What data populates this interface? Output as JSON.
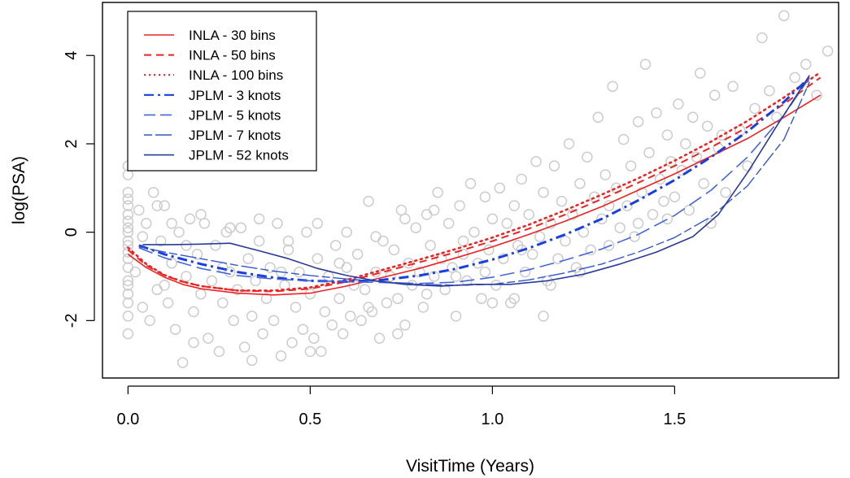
{
  "chart_data": {
    "type": "scatter",
    "xlabel": "VisitTime (Years)",
    "ylabel": "log(PSA)",
    "xlim": [
      -0.07,
      1.95
    ],
    "ylim": [
      -3.3,
      5.2
    ],
    "xticks": [
      0.0,
      0.5,
      1.0,
      1.5
    ],
    "xtick_labels": [
      "0.0",
      "0.5",
      "1.0",
      "1.5"
    ],
    "yticks": [
      -2,
      0,
      2,
      4
    ],
    "ytick_labels": [
      "-2",
      "0",
      "2",
      "4"
    ],
    "grid": false,
    "legend_position": "top-left",
    "point_color": "#cccccc",
    "point_style": "open-circle",
    "scatter_points": [
      [
        0.0,
        -0.3
      ],
      [
        0.0,
        0.4
      ],
      [
        0.0,
        -0.8
      ],
      [
        0.0,
        0.9
      ],
      [
        0.0,
        -1.4
      ],
      [
        0.0,
        1.3
      ],
      [
        0.0,
        -1.9
      ],
      [
        0.0,
        0.1
      ],
      [
        0.0,
        -0.6
      ],
      [
        0.0,
        0.6
      ],
      [
        0.0,
        -1.1
      ],
      [
        0.0,
        -2.3
      ],
      [
        0.0,
        1.5
      ],
      [
        0.0,
        0.0
      ],
      [
        0.0,
        -0.2
      ],
      [
        0.0,
        0.25
      ],
      [
        0.0,
        -0.45
      ],
      [
        0.0,
        -1.6
      ],
      [
        0.0,
        0.75
      ],
      [
        0.0,
        -1.2
      ],
      [
        0.02,
        -0.9
      ],
      [
        0.03,
        0.5
      ],
      [
        0.04,
        -1.7
      ],
      [
        0.05,
        0.2
      ],
      [
        0.06,
        -2.0
      ],
      [
        0.07,
        0.9
      ],
      [
        0.08,
        -1.3
      ],
      [
        0.09,
        -0.2
      ],
      [
        0.1,
        0.6
      ],
      [
        0.11,
        -1.6
      ],
      [
        0.12,
        -0.7
      ],
      [
        0.13,
        -2.2
      ],
      [
        0.14,
        0.0
      ],
      [
        0.15,
        -2.95
      ],
      [
        0.16,
        -1.0
      ],
      [
        0.17,
        0.3
      ],
      [
        0.18,
        -1.8
      ],
      [
        0.19,
        -0.5
      ],
      [
        0.2,
        -1.4
      ],
      [
        0.21,
        0.2
      ],
      [
        0.22,
        -2.4
      ],
      [
        0.23,
        -1.1
      ],
      [
        0.24,
        -0.3
      ],
      [
        0.25,
        -2.7
      ],
      [
        0.26,
        -1.6
      ],
      [
        0.27,
        0.0
      ],
      [
        0.28,
        -0.9
      ],
      [
        0.29,
        -2.0
      ],
      [
        0.3,
        -1.3
      ],
      [
        0.31,
        0.1
      ],
      [
        0.32,
        -2.6
      ],
      [
        0.33,
        -0.6
      ],
      [
        0.34,
        -1.9
      ],
      [
        0.35,
        -1.1
      ],
      [
        0.36,
        -0.2
      ],
      [
        0.37,
        -2.3
      ],
      [
        0.38,
        -1.5
      ],
      [
        0.39,
        -0.8
      ],
      [
        0.4,
        -2.0
      ],
      [
        0.41,
        0.2
      ],
      [
        0.42,
        -2.8
      ],
      [
        0.43,
        -1.2
      ],
      [
        0.44,
        -0.4
      ],
      [
        0.45,
        -2.5
      ],
      [
        0.46,
        -1.7
      ],
      [
        0.47,
        -0.9
      ],
      [
        0.48,
        -2.2
      ],
      [
        0.49,
        0.0
      ],
      [
        0.5,
        -1.4
      ],
      [
        0.51,
        -2.4
      ],
      [
        0.52,
        -0.6
      ],
      [
        0.53,
        -2.7
      ],
      [
        0.54,
        -1.8
      ],
      [
        0.55,
        -1.0
      ],
      [
        0.56,
        -2.1
      ],
      [
        0.57,
        -0.3
      ],
      [
        0.58,
        -1.5
      ],
      [
        0.59,
        -2.3
      ],
      [
        0.6,
        -0.8
      ],
      [
        0.61,
        -1.9
      ],
      [
        0.62,
        -1.2
      ],
      [
        0.63,
        -0.5
      ],
      [
        0.64,
        -2.0
      ],
      [
        0.65,
        -1.3
      ],
      [
        0.66,
        0.7
      ],
      [
        0.67,
        -1.8
      ],
      [
        0.68,
        -0.9
      ],
      [
        0.69,
        -2.4
      ],
      [
        0.7,
        -0.2
      ],
      [
        0.71,
        -1.6
      ],
      [
        0.72,
        -1.0
      ],
      [
        0.73,
        -0.4
      ],
      [
        0.74,
        -1.5
      ],
      [
        0.75,
        0.5
      ],
      [
        0.76,
        -2.1
      ],
      [
        0.77,
        -0.7
      ],
      [
        0.78,
        -1.2
      ],
      [
        0.79,
        0.1
      ],
      [
        0.8,
        -0.9
      ],
      [
        0.81,
        -1.7
      ],
      [
        0.82,
        0.4
      ],
      [
        0.83,
        -0.3
      ],
      [
        0.84,
        -1.0
      ],
      [
        0.85,
        0.9
      ],
      [
        0.86,
        -0.6
      ],
      [
        0.87,
        -1.3
      ],
      [
        0.88,
        0.2
      ],
      [
        0.89,
        -0.8
      ],
      [
        0.9,
        -1.9
      ],
      [
        0.91,
        0.6
      ],
      [
        0.92,
        -0.2
      ],
      [
        0.93,
        -1.1
      ],
      [
        0.94,
        1.1
      ],
      [
        0.95,
        0.0
      ],
      [
        0.96,
        -0.7
      ],
      [
        0.97,
        -1.5
      ],
      [
        0.98,
        0.8
      ],
      [
        0.99,
        -0.4
      ],
      [
        1.0,
        0.3
      ],
      [
        1.01,
        -1.2
      ],
      [
        1.02,
        1.0
      ],
      [
        1.03,
        -0.6
      ],
      [
        1.04,
        0.2
      ],
      [
        1.05,
        -1.6
      ],
      [
        1.06,
        0.6
      ],
      [
        1.07,
        -0.3
      ],
      [
        1.08,
        1.2
      ],
      [
        1.09,
        -0.9
      ],
      [
        1.1,
        0.4
      ],
      [
        1.11,
        -0.5
      ],
      [
        1.12,
        1.6
      ],
      [
        1.13,
        -0.1
      ],
      [
        1.14,
        0.9
      ],
      [
        1.15,
        -1.1
      ],
      [
        1.16,
        0.2
      ],
      [
        1.17,
        1.5
      ],
      [
        1.18,
        -0.6
      ],
      [
        1.19,
        0.7
      ],
      [
        1.2,
        -0.2
      ],
      [
        1.21,
        2.0
      ],
      [
        1.22,
        0.4
      ],
      [
        1.23,
        -0.8
      ],
      [
        1.24,
        1.1
      ],
      [
        1.25,
        0.0
      ],
      [
        1.26,
        1.7
      ],
      [
        1.27,
        -0.4
      ],
      [
        1.28,
        0.8
      ],
      [
        1.29,
        2.6
      ],
      [
        1.3,
        0.3
      ],
      [
        1.31,
        1.3
      ],
      [
        1.32,
        -0.3
      ],
      [
        1.33,
        3.3
      ],
      [
        1.34,
        1.0
      ],
      [
        1.35,
        0.1
      ],
      [
        1.36,
        2.1
      ],
      [
        1.37,
        0.6
      ],
      [
        1.38,
        1.5
      ],
      [
        1.39,
        -0.1
      ],
      [
        1.4,
        2.5
      ],
      [
        1.41,
        0.9
      ],
      [
        1.42,
        3.8
      ],
      [
        1.43,
        1.8
      ],
      [
        1.44,
        0.4
      ],
      [
        1.45,
        2.7
      ],
      [
        1.46,
        1.2
      ],
      [
        1.47,
        0.7
      ],
      [
        1.48,
        2.2
      ],
      [
        1.49,
        1.6
      ],
      [
        1.5,
        0.8
      ],
      [
        1.51,
        2.9
      ],
      [
        1.52,
        1.4
      ],
      [
        1.53,
        2.0
      ],
      [
        1.54,
        0.5
      ],
      [
        1.55,
        2.6
      ],
      [
        1.56,
        1.7
      ],
      [
        1.57,
        3.6
      ],
      [
        1.58,
        1.1
      ],
      [
        1.59,
        2.4
      ],
      [
        1.6,
        0.2
      ],
      [
        1.61,
        3.1
      ],
      [
        1.62,
        1.9
      ],
      [
        1.63,
        2.2
      ],
      [
        1.64,
        0.9
      ],
      [
        1.66,
        3.3
      ],
      [
        1.68,
        2.3
      ],
      [
        1.7,
        1.5
      ],
      [
        1.72,
        2.8
      ],
      [
        1.74,
        4.4
      ],
      [
        1.76,
        3.2
      ],
      [
        1.78,
        2.6
      ],
      [
        1.8,
        4.9
      ],
      [
        1.83,
        3.5
      ],
      [
        1.86,
        3.8
      ],
      [
        1.89,
        3.1
      ],
      [
        1.92,
        4.1
      ],
      [
        0.04,
        -0.1
      ],
      [
        0.08,
        0.6
      ],
      [
        0.12,
        0.2
      ],
      [
        0.16,
        -0.3
      ],
      [
        0.2,
        0.4
      ],
      [
        0.28,
        0.1
      ],
      [
        0.36,
        0.3
      ],
      [
        0.44,
        -0.2
      ],
      [
        0.52,
        0.2
      ],
      [
        0.6,
        0.0
      ],
      [
        0.68,
        -0.1
      ],
      [
        0.76,
        0.3
      ],
      [
        0.84,
        0.5
      ],
      [
        0.92,
        -0.5
      ],
      [
        1.0,
        -1.6
      ],
      [
        1.08,
        -0.4
      ],
      [
        1.16,
        -1.2
      ],
      [
        1.24,
        -0.9
      ],
      [
        1.32,
        0.6
      ],
      [
        1.4,
        0.2
      ],
      [
        1.48,
        0.3
      ],
      [
        0.1,
        -1.2
      ],
      [
        0.18,
        -2.5
      ],
      [
        0.26,
        -0.8
      ],
      [
        0.34,
        -2.9
      ],
      [
        0.42,
        -0.9
      ],
      [
        0.5,
        -2.7
      ],
      [
        0.58,
        -0.7
      ],
      [
        0.66,
        -1.7
      ],
      [
        0.74,
        -2.3
      ],
      [
        0.82,
        -1.4
      ],
      [
        0.9,
        -1.0
      ],
      [
        0.98,
        -0.9
      ],
      [
        1.06,
        -1.5
      ],
      [
        1.14,
        -1.9
      ]
    ],
    "series": [
      {
        "name": "INLA - 30 bins",
        "color": "#ee2222",
        "dash": "solid",
        "width": 1.6,
        "x": [
          0.0,
          0.05,
          0.1,
          0.15,
          0.2,
          0.3,
          0.4,
          0.5,
          0.6,
          0.7,
          0.8,
          0.9,
          1.0,
          1.1,
          1.2,
          1.3,
          1.4,
          1.5,
          1.6,
          1.7,
          1.8,
          1.9
        ],
        "y": [
          -0.5,
          -0.8,
          -1.02,
          -1.18,
          -1.28,
          -1.38,
          -1.42,
          -1.38,
          -1.22,
          -1.02,
          -0.82,
          -0.58,
          -0.33,
          -0.05,
          0.25,
          0.58,
          0.95,
          1.32,
          1.72,
          2.12,
          2.6,
          3.1
        ]
      },
      {
        "name": "INLA - 50 bins",
        "color": "#ee2222",
        "dash": "dashed",
        "width": 2.0,
        "x": [
          0.0,
          0.05,
          0.1,
          0.15,
          0.2,
          0.3,
          0.4,
          0.5,
          0.6,
          0.7,
          0.8,
          0.9,
          1.0,
          1.1,
          1.2,
          1.3,
          1.4,
          1.5,
          1.6,
          1.7,
          1.8,
          1.9
        ],
        "y": [
          -0.4,
          -0.75,
          -0.98,
          -1.12,
          -1.22,
          -1.32,
          -1.34,
          -1.28,
          -1.12,
          -0.9,
          -0.68,
          -0.45,
          -0.2,
          0.08,
          0.4,
          0.75,
          1.12,
          1.5,
          1.92,
          2.38,
          2.9,
          3.5
        ]
      },
      {
        "name": "INLA - 100 bins",
        "color": "#ee2222",
        "dash": "dotted",
        "width": 2.6,
        "x": [
          0.0,
          0.05,
          0.1,
          0.15,
          0.2,
          0.3,
          0.4,
          0.5,
          0.6,
          0.7,
          0.8,
          0.9,
          1.0,
          1.1,
          1.2,
          1.3,
          1.4,
          1.5,
          1.6,
          1.7,
          1.8,
          1.9
        ],
        "y": [
          -0.35,
          -0.72,
          -0.97,
          -1.12,
          -1.22,
          -1.32,
          -1.32,
          -1.25,
          -1.08,
          -0.85,
          -0.62,
          -0.38,
          -0.12,
          0.17,
          0.5,
          0.85,
          1.22,
          1.62,
          2.05,
          2.52,
          3.05,
          3.62
        ]
      },
      {
        "name": "JPLM - 3 knots",
        "color": "#1a3fe0",
        "dash": "dashdot",
        "width": 3.0,
        "x": [
          0.03,
          0.1,
          0.2,
          0.3,
          0.4,
          0.5,
          0.6,
          0.7,
          0.8,
          0.9,
          1.0,
          1.1,
          1.2,
          1.3,
          1.4,
          1.5,
          1.6,
          1.7,
          1.8,
          1.87
        ],
        "y": [
          -0.3,
          -0.5,
          -0.72,
          -0.9,
          -1.03,
          -1.1,
          -1.12,
          -1.08,
          -0.98,
          -0.83,
          -0.62,
          -0.36,
          -0.05,
          0.3,
          0.72,
          1.18,
          1.7,
          2.28,
          2.95,
          3.5
        ]
      },
      {
        "name": "JPLM - 5 knots",
        "color": "#4466dd",
        "dash": "longdash",
        "width": 1.6,
        "x": [
          0.03,
          0.1,
          0.2,
          0.3,
          0.4,
          0.5,
          0.6,
          0.7,
          0.8,
          0.9,
          1.0,
          1.1,
          1.2,
          1.3,
          1.4,
          1.5,
          1.6,
          1.7,
          1.8,
          1.87
        ],
        "y": [
          -0.35,
          -0.58,
          -0.82,
          -0.98,
          -1.06,
          -1.1,
          -1.12,
          -1.14,
          -1.16,
          -1.13,
          -1.02,
          -0.85,
          -0.63,
          -0.38,
          -0.05,
          0.38,
          0.95,
          1.7,
          2.65,
          3.5
        ]
      },
      {
        "name": "JPLM - 7 knots",
        "color": "#3355cc",
        "dash": "twodash",
        "width": 1.4,
        "x": [
          0.03,
          0.1,
          0.2,
          0.3,
          0.4,
          0.5,
          0.6,
          0.7,
          0.8,
          0.9,
          1.0,
          1.1,
          1.2,
          1.3,
          1.4,
          1.5,
          1.6,
          1.7,
          1.8,
          1.87
        ],
        "y": [
          -0.33,
          -0.45,
          -0.6,
          -0.75,
          -0.88,
          -0.98,
          -1.06,
          -1.12,
          -1.18,
          -1.2,
          -1.18,
          -1.08,
          -0.92,
          -0.72,
          -0.45,
          -0.12,
          0.35,
          1.05,
          2.1,
          3.4
        ]
      },
      {
        "name": "JPLM - 52 knots",
        "color": "#2a3a99",
        "dash": "solid",
        "width": 1.6,
        "x": [
          0.04,
          0.12,
          0.2,
          0.28,
          0.36,
          0.44,
          0.52,
          0.6,
          0.68,
          0.76,
          0.86,
          0.95,
          1.05,
          1.15,
          1.25,
          1.35,
          1.45,
          1.55,
          1.62,
          1.7,
          1.78,
          1.87
        ],
        "y": [
          -0.28,
          -0.28,
          -0.27,
          -0.25,
          -0.42,
          -0.6,
          -0.82,
          -0.98,
          -1.1,
          -1.18,
          -1.22,
          -1.18,
          -1.18,
          -1.1,
          -0.95,
          -0.72,
          -0.45,
          -0.1,
          0.4,
          1.35,
          2.4,
          3.55
        ]
      }
    ]
  }
}
